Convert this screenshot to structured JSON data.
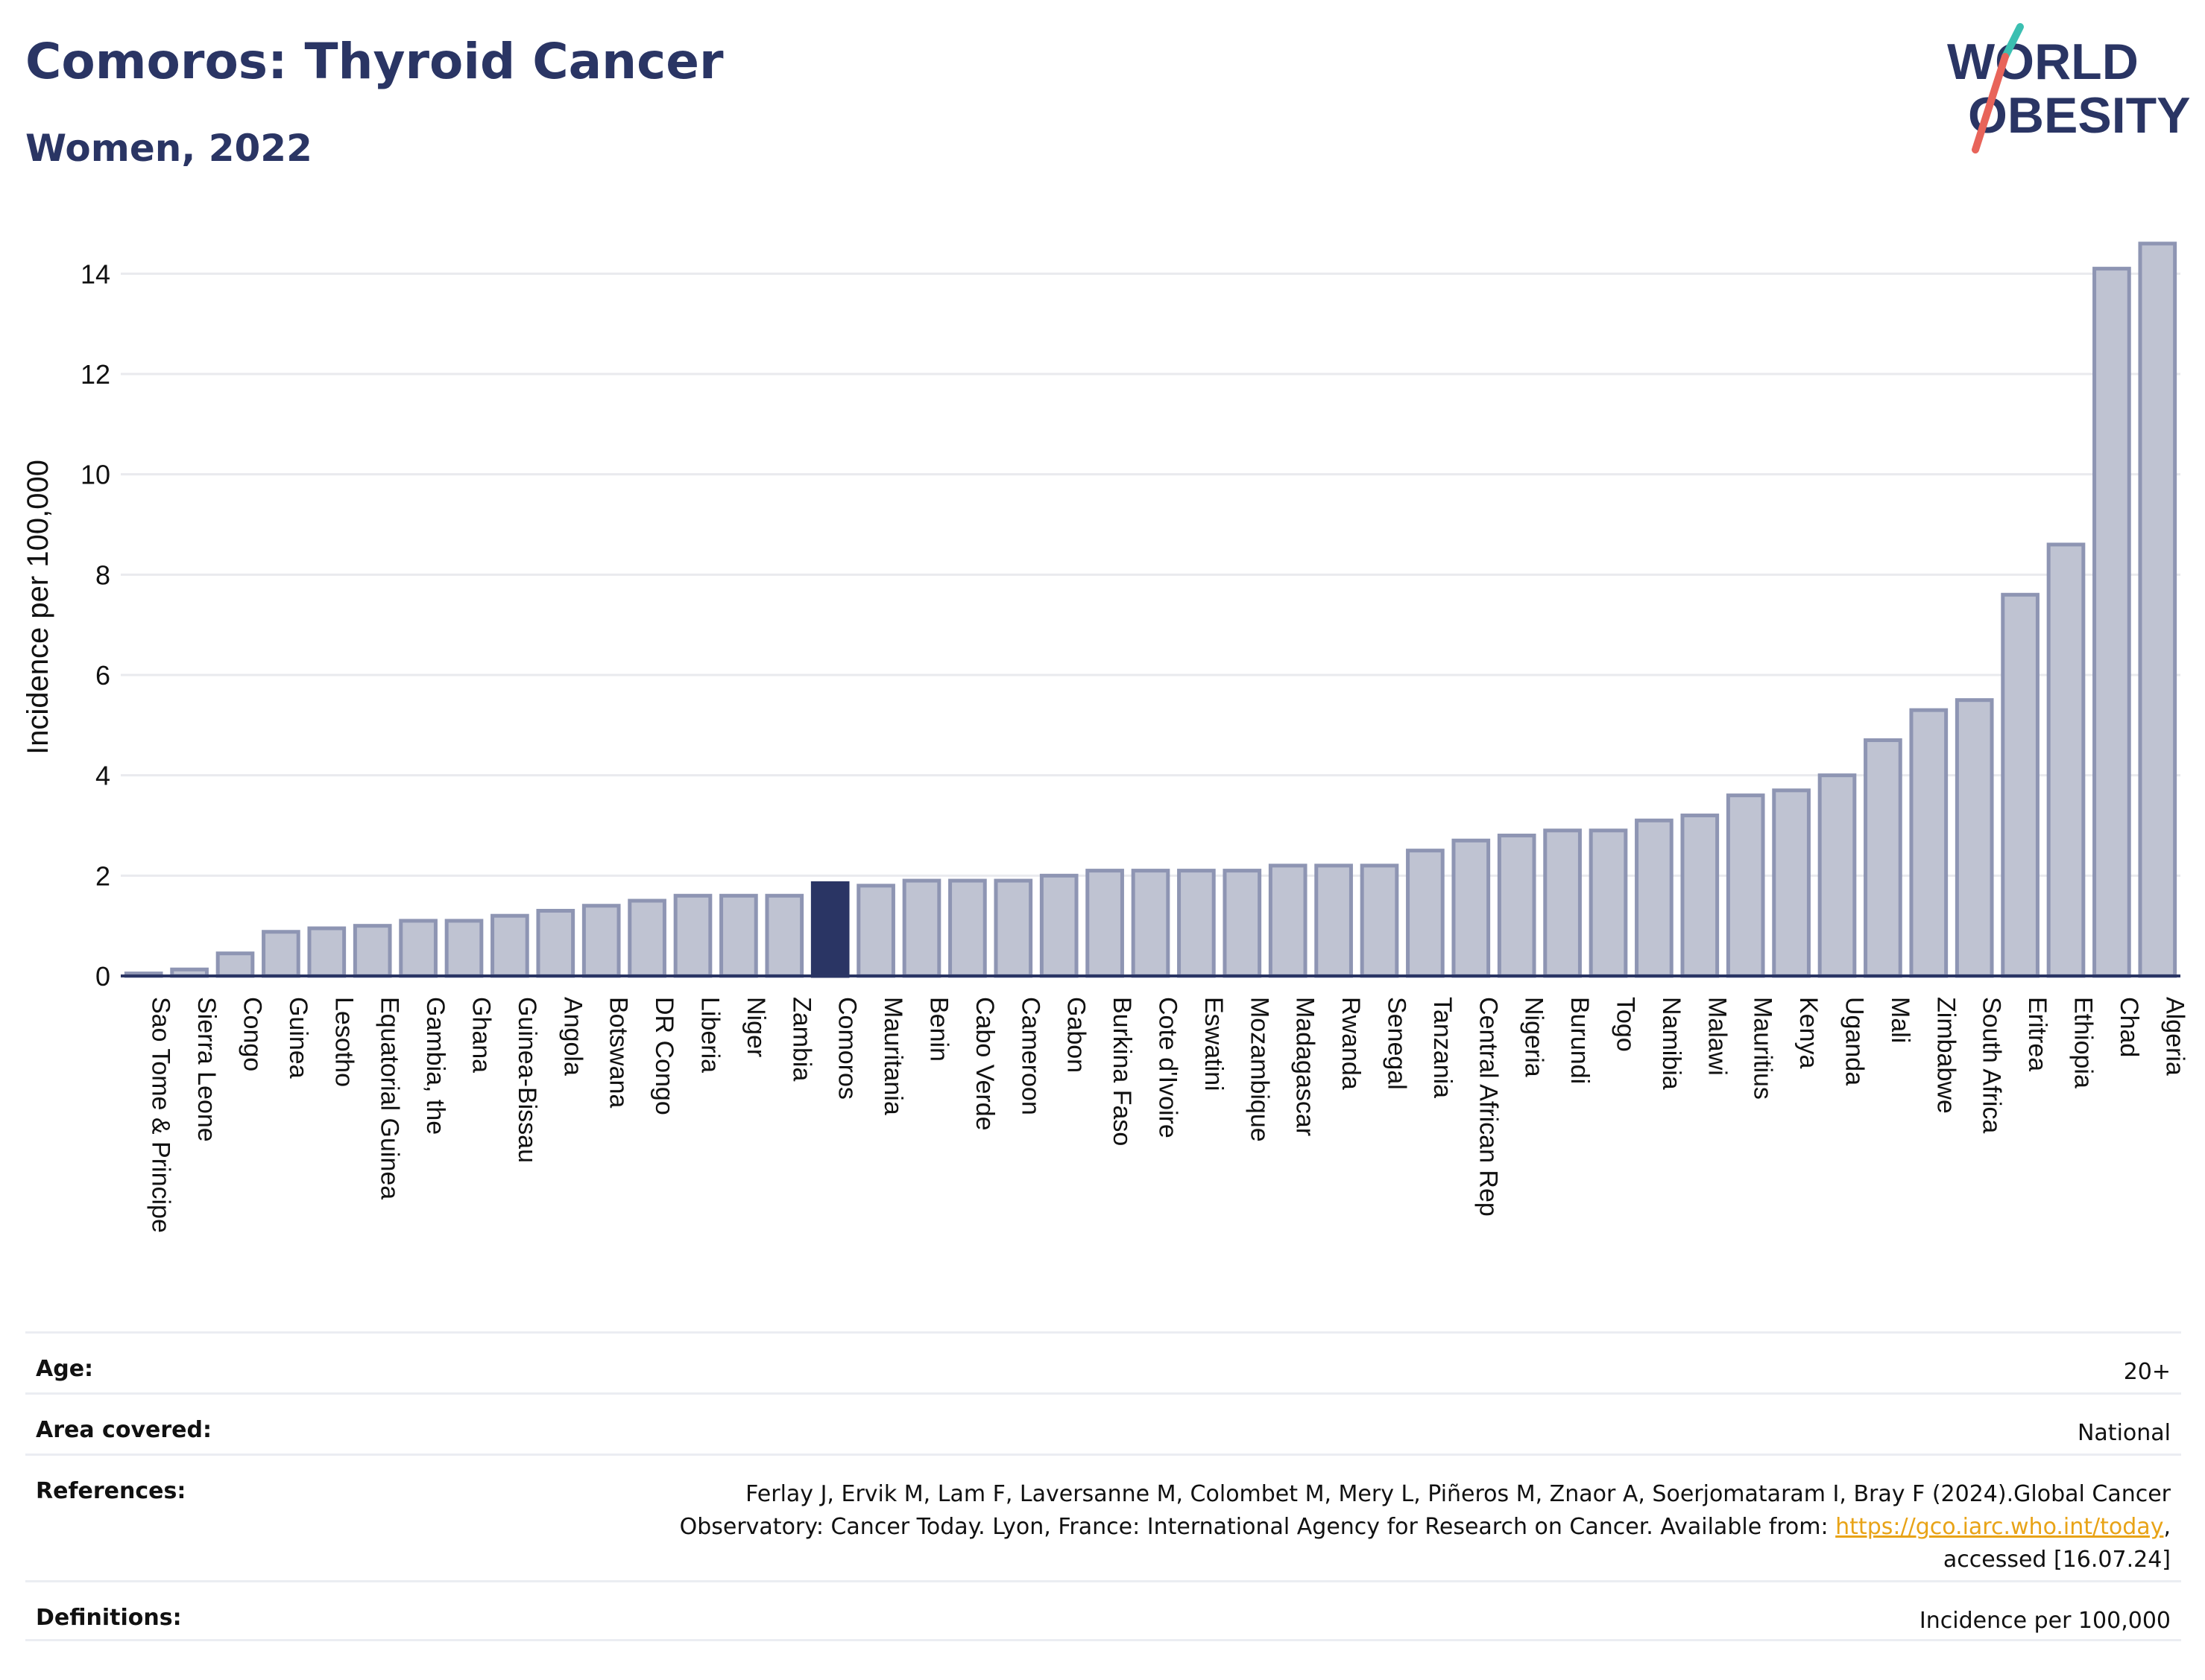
{
  "header": {
    "title": "Comoros: Thyroid Cancer",
    "subtitle": "Women, 2022"
  },
  "logo": {
    "line1": "WORLD",
    "line2": "OBESITY",
    "colors": {
      "text": "#2a3564",
      "slash_top": "#3bbfb1",
      "slash_bottom": "#e8645a"
    }
  },
  "chart_data": {
    "type": "bar",
    "ylabel": "Incidence per 100,000",
    "ylim": [
      0,
      15
    ],
    "yticks": [
      0,
      2,
      4,
      6,
      8,
      10,
      12,
      14
    ],
    "grid": true,
    "highlight": "Comoros",
    "colors": {
      "bar": "#bfc3d2",
      "bar_edge": "#8e95b3",
      "highlight": "#2a3564",
      "grid": "#e9eaee",
      "axis": "#2a3564"
    },
    "categories": [
      "Sao Tome & Principe",
      "Sierra Leone",
      "Congo",
      "Guinea",
      "Lesotho",
      "Equatorial Guinea",
      "Gambia, the",
      "Ghana",
      "Guinea-Bissau",
      "Angola",
      "Botswana",
      "DR Congo",
      "Liberia",
      "Niger",
      "Zambia",
      "Comoros",
      "Mauritania",
      "Benin",
      "Cabo Verde",
      "Cameroon",
      "Gabon",
      "Burkina Faso",
      "Cote d'Ivoire",
      "Eswatini",
      "Mozambique",
      "Madagascar",
      "Rwanda",
      "Senegal",
      "Tanzania",
      "Central African Rep",
      "Nigeria",
      "Burundi",
      "Togo",
      "Namibia",
      "Malawi",
      "Mauritius",
      "Kenya",
      "Uganda",
      "Mali",
      "Zimbabwe",
      "South Africa",
      "Eritrea",
      "Ethiopia",
      "Chad",
      "Algeria"
    ],
    "values": [
      0.05,
      0.13,
      0.45,
      0.88,
      0.95,
      1.0,
      1.1,
      1.1,
      1.2,
      1.3,
      1.4,
      1.5,
      1.6,
      1.6,
      1.6,
      1.85,
      1.8,
      1.9,
      1.9,
      1.9,
      2.0,
      2.1,
      2.1,
      2.1,
      2.1,
      2.2,
      2.2,
      2.2,
      2.5,
      2.7,
      2.8,
      2.9,
      2.9,
      3.1,
      3.2,
      3.6,
      3.7,
      4.0,
      4.7,
      5.3,
      5.5,
      7.6,
      8.6,
      14.1,
      14.6
    ]
  },
  "info": {
    "age_label": "Age:",
    "age_value": "20+",
    "area_label": "Area covered:",
    "area_value": "National",
    "references_label": "References:",
    "references_line1": "Ferlay J, Ervik M, Lam F, Laversanne M, Colombet M, Mery L, Piñeros M, Znaor A, Soerjomataram I, Bray F (2024).Global Cancer",
    "references_line2_prefix": "Observatory: Cancer Today. Lyon, France: International Agency for Research on Cancer. Available from: ",
    "references_link": "https://gco.iarc.who.int/today",
    "references_line2_suffix": ",",
    "references_line3": "accessed [16.07.24]",
    "definitions_label": "Definitions:",
    "definitions_value": "Incidence per 100,000"
  }
}
